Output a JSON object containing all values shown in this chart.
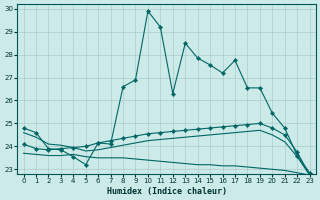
{
  "xlabel": "Humidex (Indice chaleur)",
  "bg_color": "#cceae7",
  "grid_color": "#aacccc",
  "line_color": "#006666",
  "xlim": [
    -0.5,
    23.5
  ],
  "ylim": [
    22.8,
    30.2
  ],
  "yticks": [
    23,
    24,
    25,
    26,
    27,
    28,
    29,
    30
  ],
  "xticks": [
    0,
    1,
    2,
    3,
    4,
    5,
    6,
    7,
    8,
    9,
    10,
    11,
    12,
    13,
    14,
    15,
    16,
    17,
    18,
    19,
    20,
    21,
    22,
    23
  ],
  "series_main": {
    "x": [
      0,
      1,
      2,
      3,
      4,
      5,
      6,
      7,
      8,
      9,
      10,
      11,
      12,
      13,
      14,
      15,
      16,
      17,
      18,
      19,
      20,
      21,
      22,
      23
    ],
    "y": [
      24.8,
      24.6,
      23.9,
      23.85,
      23.55,
      23.2,
      24.15,
      24.1,
      26.6,
      26.9,
      29.9,
      29.2,
      26.3,
      28.5,
      27.85,
      27.55,
      27.2,
      27.75,
      26.55,
      26.55,
      25.45,
      24.8,
      23.6,
      22.85
    ]
  },
  "series_upper": {
    "x": [
      0,
      1,
      2,
      3,
      4,
      5,
      6,
      7,
      8,
      9,
      10,
      11,
      12,
      13,
      14,
      15,
      16,
      17,
      18,
      19,
      20,
      21,
      22,
      23
    ],
    "y": [
      24.1,
      23.9,
      23.85,
      23.9,
      23.95,
      24.0,
      24.15,
      24.25,
      24.35,
      24.45,
      24.55,
      24.6,
      24.65,
      24.7,
      24.75,
      24.8,
      24.85,
      24.9,
      24.95,
      25.0,
      24.8,
      24.5,
      23.75,
      22.75
    ]
  },
  "series_mid": {
    "x": [
      0,
      1,
      2,
      3,
      4,
      5,
      6,
      7,
      8,
      9,
      10,
      11,
      12,
      13,
      14,
      15,
      16,
      17,
      18,
      19,
      20,
      21,
      22,
      23
    ],
    "y": [
      24.6,
      24.4,
      24.1,
      24.05,
      23.95,
      23.8,
      23.85,
      23.95,
      24.05,
      24.15,
      24.25,
      24.3,
      24.35,
      24.4,
      24.45,
      24.5,
      24.55,
      24.6,
      24.65,
      24.7,
      24.5,
      24.2,
      23.55,
      22.75
    ]
  },
  "series_lower": {
    "x": [
      0,
      1,
      2,
      3,
      4,
      5,
      6,
      7,
      8,
      9,
      10,
      11,
      12,
      13,
      14,
      15,
      16,
      17,
      18,
      19,
      20,
      21,
      22,
      23
    ],
    "y": [
      23.7,
      23.65,
      23.6,
      23.6,
      23.65,
      23.55,
      23.5,
      23.5,
      23.5,
      23.45,
      23.4,
      23.35,
      23.3,
      23.25,
      23.2,
      23.2,
      23.15,
      23.15,
      23.1,
      23.05,
      23.0,
      22.95,
      22.85,
      22.75
    ]
  }
}
